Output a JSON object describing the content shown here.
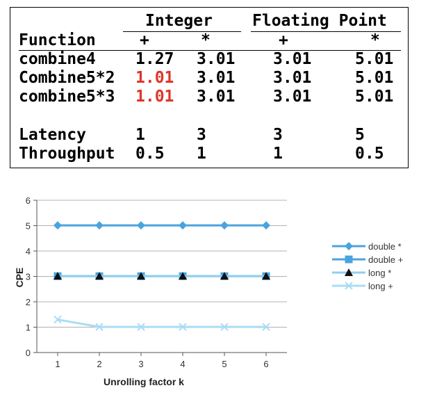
{
  "table": {
    "group_headers": {
      "integer": "Integer",
      "floating": "Floating Point"
    },
    "function_header": "Function",
    "ops": [
      "+",
      "*",
      "+",
      "*"
    ],
    "rows": [
      {
        "name": "combine4",
        "values": [
          "1.27",
          "3.01",
          "3.01",
          "5.01"
        ],
        "highlight": false
      },
      {
        "name": "Combine5*2",
        "values": [
          "1.01",
          "3.01",
          "3.01",
          "5.01"
        ],
        "highlight": true
      },
      {
        "name": "combine5*3",
        "values": [
          "1.01",
          "3.01",
          "3.01",
          "5.01"
        ],
        "highlight": true
      }
    ],
    "bound_rows": [
      {
        "name": "Latency",
        "values": [
          "1",
          "3",
          "3",
          "5"
        ]
      },
      {
        "name": "Throughput",
        "values": [
          "0.5",
          "1",
          "1",
          "0.5"
        ]
      }
    ],
    "highlight_color": "#e0342a"
  },
  "chart_data": {
    "type": "line",
    "x": [
      1,
      2,
      3,
      4,
      5,
      6
    ],
    "xlabel": "Unrolling factor k",
    "ylabel": "CPE",
    "xlim": [
      0.5,
      6.5
    ],
    "ylim": [
      0,
      6
    ],
    "yticks": [
      0,
      1,
      2,
      3,
      4,
      5,
      6
    ],
    "grid": "horizontal",
    "legend_position": "right",
    "series": [
      {
        "name": "double *",
        "values": [
          5.01,
          5.01,
          5.01,
          5.01,
          5.01,
          5.01
        ],
        "color": "#4aa3df",
        "marker": "diamond"
      },
      {
        "name": "double +",
        "values": [
          3.01,
          3.01,
          3.01,
          3.01,
          3.01,
          3.01
        ],
        "color": "#4aa3df",
        "marker": "square"
      },
      {
        "name": "long *",
        "values": [
          3.01,
          3.01,
          3.01,
          3.01,
          3.01,
          3.01
        ],
        "color": "#8fcff0",
        "marker": "triangle"
      },
      {
        "name": "long +",
        "values": [
          1.3,
          1.01,
          1.01,
          1.01,
          1.01,
          1.01
        ],
        "color": "#a9dcf5",
        "marker": "x"
      }
    ]
  }
}
